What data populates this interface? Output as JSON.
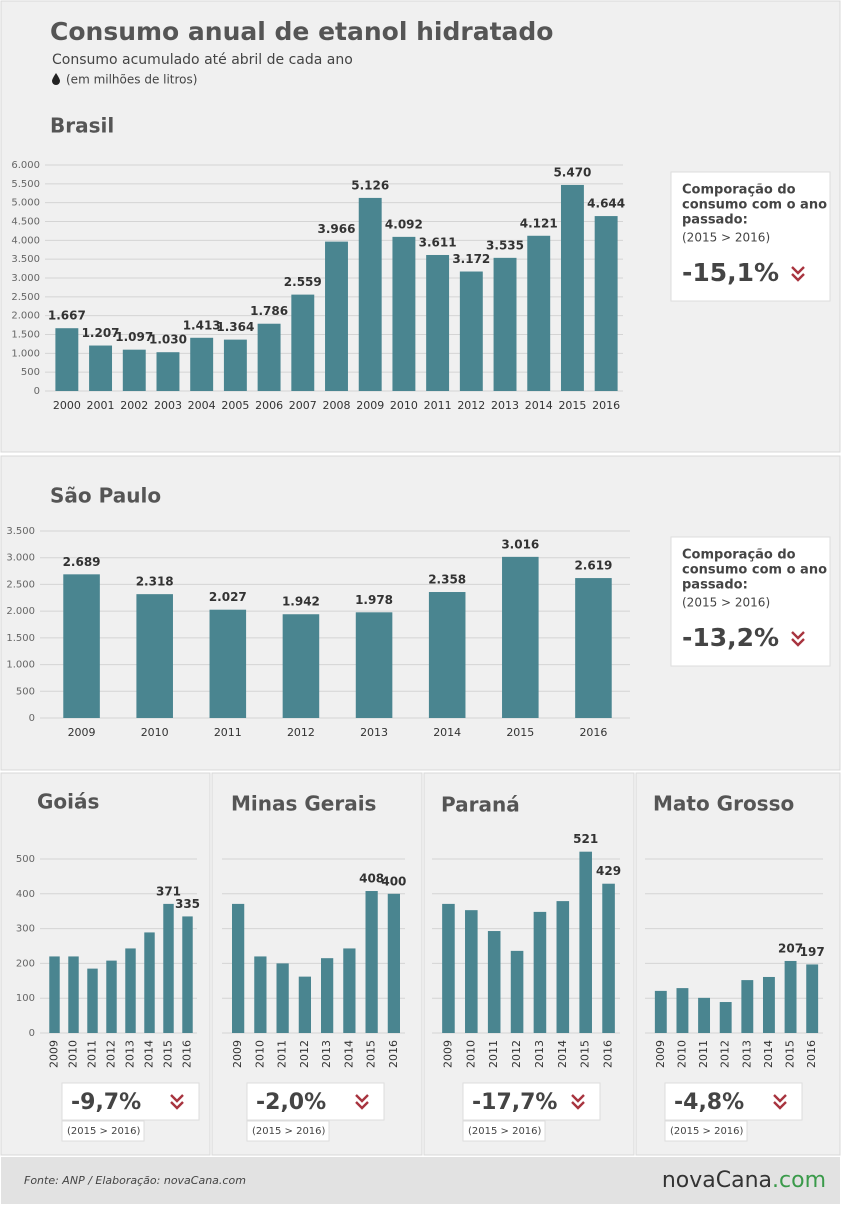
{
  "title": "Consumo anual de etanol hidratado",
  "subtitle": "Consumo acumulado até abril de cada ano",
  "unit_note": "(em milhões de litros)",
  "chart_data": [
    {
      "type": "bar",
      "title": "Brasil",
      "categories": [
        "2000",
        "2001",
        "2002",
        "2003",
        "2004",
        "2005",
        "2006",
        "2007",
        "2008",
        "2009",
        "2010",
        "2011",
        "2012",
        "2013",
        "2014",
        "2015",
        "2016"
      ],
      "values": [
        1667,
        1207,
        1097,
        1030,
        1413,
        1364,
        1786,
        2559,
        3966,
        5126,
        4092,
        3611,
        3172,
        3535,
        4121,
        5470,
        4644
      ],
      "value_labels": [
        "1.667",
        "1.207",
        "1.097",
        "1.030",
        "1.413",
        "1.364",
        "1.786",
        "2.559",
        "3.966",
        "5.126",
        "4.092",
        "3.611",
        "3.172",
        "3.535",
        "4.121",
        "5.470",
        "4.644"
      ],
      "color": "#4a8590",
      "ylim": [
        0,
        6000
      ],
      "yticks": [
        0,
        500,
        {
          "value": 1000,
          "label": "1.000"
        },
        {
          "value": 1500,
          "label": "1.500"
        },
        {
          "value": 2000,
          "label": "2.000"
        },
        {
          "value": 2500,
          "label": "2.500"
        },
        {
          "value": 3000,
          "label": "3.000"
        },
        {
          "value": 3500,
          "label": "3.500"
        },
        {
          "value": 4000,
          "label": "4.000"
        },
        {
          "value": 4500,
          "label": "4.500"
        },
        {
          "value": 5000,
          "label": "5.000"
        },
        {
          "value": 5500,
          "label": "5.500"
        },
        {
          "value": 6000,
          "label": "6.000"
        }
      ],
      "grid": true,
      "comparison": {
        "heading": [
          "Comporação do",
          "consumo com o ano",
          "passado:"
        ],
        "period": "(2015 > 2016)",
        "change": "-15,1%"
      }
    },
    {
      "type": "bar",
      "title": "São Paulo",
      "categories": [
        "2009",
        "2010",
        "2011",
        "2012",
        "2013",
        "2014",
        "2015",
        "2016"
      ],
      "values": [
        2689,
        2318,
        2027,
        1942,
        1978,
        2358,
        3016,
        2619
      ],
      "value_labels": [
        "2.689",
        "2.318",
        "2.027",
        "1.942",
        "1.978",
        "2.358",
        "3.016",
        "2.619"
      ],
      "color": "#4a8590",
      "ylim": [
        0,
        3500
      ],
      "yticks": [
        0,
        500,
        {
          "value": 1000,
          "label": "1.000"
        },
        {
          "value": 1500,
          "label": "1.500"
        },
        {
          "value": 2000,
          "label": "2.000"
        },
        {
          "value": 2500,
          "label": "2.500"
        },
        {
          "value": 3000,
          "label": "3.000"
        },
        {
          "value": 3500,
          "label": "3.500"
        }
      ],
      "grid": true,
      "comparison": {
        "heading": [
          "Comporação do",
          "consumo com o ano",
          "passado:"
        ],
        "period": "(2015 > 2016)",
        "change": "-13,2%"
      }
    },
    {
      "type": "bar",
      "title": "Goiás",
      "categories": [
        "2009",
        "2010",
        "2011",
        "2012",
        "2013",
        "2014",
        "2015",
        "2016"
      ],
      "values": [
        220,
        220,
        185,
        208,
        243,
        289,
        371,
        335
      ],
      "value_labels": [
        null,
        null,
        null,
        null,
        null,
        null,
        "371",
        "335"
      ],
      "color": "#4a8590",
      "ylim": [
        0,
        500
      ],
      "yticks": [
        0,
        100,
        200,
        300,
        400,
        500
      ],
      "grid": true,
      "tick_labels": true,
      "comparison": {
        "change": "-9,7%",
        "period": "(2015 > 2016)"
      }
    },
    {
      "type": "bar",
      "title": "Minas Gerais",
      "categories": [
        "2009",
        "2010",
        "2011",
        "2012",
        "2013",
        "2014",
        "2015",
        "2016"
      ],
      "values": [
        371,
        220,
        200,
        162,
        215,
        243,
        408,
        400
      ],
      "value_labels": [
        null,
        null,
        null,
        null,
        null,
        null,
        "408",
        "400"
      ],
      "color": "#4a8590",
      "ylim": [
        0,
        500
      ],
      "yticks": [
        0,
        100,
        200,
        300,
        400,
        500
      ],
      "grid": true,
      "tick_labels": false,
      "comparison": {
        "change": "-2,0%",
        "period": "(2015 > 2016)"
      }
    },
    {
      "type": "bar",
      "title": "Paraná",
      "categories": [
        "2009",
        "2010",
        "2011",
        "2012",
        "2013",
        "2014",
        "2015",
        "2016"
      ],
      "values": [
        371,
        353,
        293,
        236,
        348,
        379,
        521,
        429
      ],
      "value_labels": [
        null,
        null,
        null,
        null,
        null,
        null,
        "521",
        "429"
      ],
      "color": "#4a8590",
      "ylim": [
        0,
        500
      ],
      "yticks": [
        0,
        100,
        200,
        300,
        400,
        500
      ],
      "grid": true,
      "tick_labels": false,
      "comparison": {
        "change": "-17,7%",
        "period": "(2015 > 2016)"
      }
    },
    {
      "type": "bar",
      "title": "Mato Grosso",
      "categories": [
        "2009",
        "2010",
        "2011",
        "2012",
        "2013",
        "2014",
        "2015",
        "2016"
      ],
      "values": [
        121,
        129,
        101,
        89,
        152,
        161,
        207,
        197
      ],
      "value_labels": [
        null,
        null,
        null,
        null,
        null,
        null,
        "207",
        "197"
      ],
      "color": "#4a8590",
      "ylim": [
        0,
        500
      ],
      "yticks": [
        0,
        100,
        200,
        300,
        400,
        500
      ],
      "grid": true,
      "tick_labels": false,
      "comparison": {
        "change": "-4,8%",
        "period": "(2015 > 2016)"
      }
    }
  ],
  "source": "Fonte: ANP  / Elaboração: novaCana.com",
  "logo": [
    "nova",
    "Cana",
    ".com"
  ]
}
